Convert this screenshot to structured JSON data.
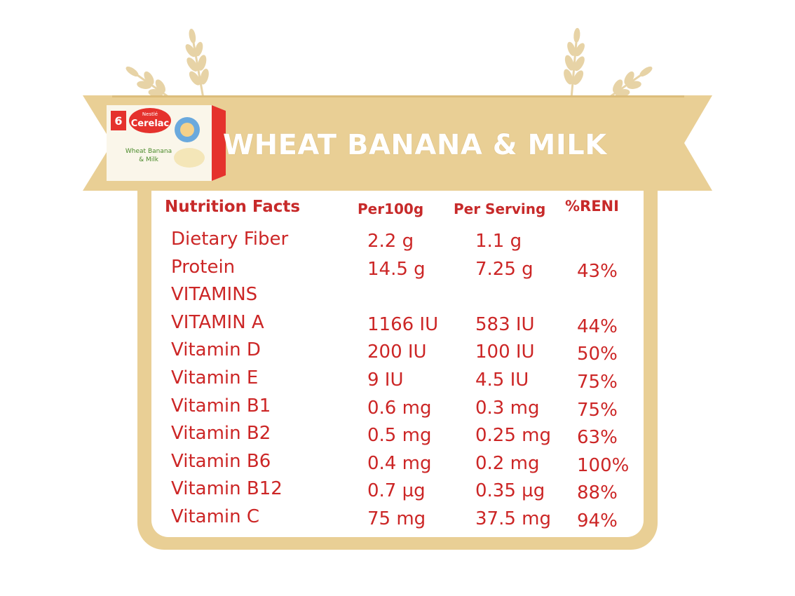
{
  "banner": {
    "title": "WHEAT BANANA & MILK",
    "ribbon_color": "#e9cf95",
    "wheat_color": "#e7d3a6"
  },
  "product": {
    "brand": "Nestlé",
    "name": "Cerelac",
    "flavor_line1": "Wheat Banana",
    "flavor_line2": "& Milk",
    "age_badge": "6",
    "box_color": "#e5322d"
  },
  "table": {
    "headers": {
      "name": "Nutrition Facts",
      "per100": "Per100g",
      "serving": "Per Serving",
      "reni": "%RENI"
    },
    "text_color": "#cc2626",
    "rows": [
      {
        "name": "Dietary Fiber",
        "per100": "2.2 g",
        "serving": "1.1 g",
        "reni": ""
      },
      {
        "name": "Protein",
        "per100": "14.5 g",
        "serving": "7.25 g",
        "reni": "43%"
      },
      {
        "name": "VITAMINS",
        "per100": "",
        "serving": "",
        "reni": ""
      },
      {
        "name": "VITAMIN A",
        "per100": "1166 IU",
        "serving": "583 IU",
        "reni": "44%"
      },
      {
        "name": "Vitamin D",
        "per100": "200 IU",
        "serving": "100 IU",
        "reni": "50%"
      },
      {
        "name": "Vitamin E",
        "per100": "9 IU",
        "serving": "4.5 IU",
        "reni": "75%"
      },
      {
        "name": "Vitamin B1",
        "per100": "0.6 mg",
        "serving": "0.3 mg",
        "reni": "75%"
      },
      {
        "name": "Vitamin B2",
        "per100": "0.5 mg",
        "serving": "0.25 mg",
        "reni": "63%"
      },
      {
        "name": "Vitamin B6",
        "per100": "0.4 mg",
        "serving": "0.2 mg",
        "reni": "100%"
      },
      {
        "name": "Vitamin B12",
        "per100": "0.7 µg",
        "serving": "0.35 µg",
        "reni": "88%"
      },
      {
        "name": "Vitamin C",
        "per100": "75 mg",
        "serving": "37.5 mg",
        "reni": "94%"
      }
    ]
  }
}
